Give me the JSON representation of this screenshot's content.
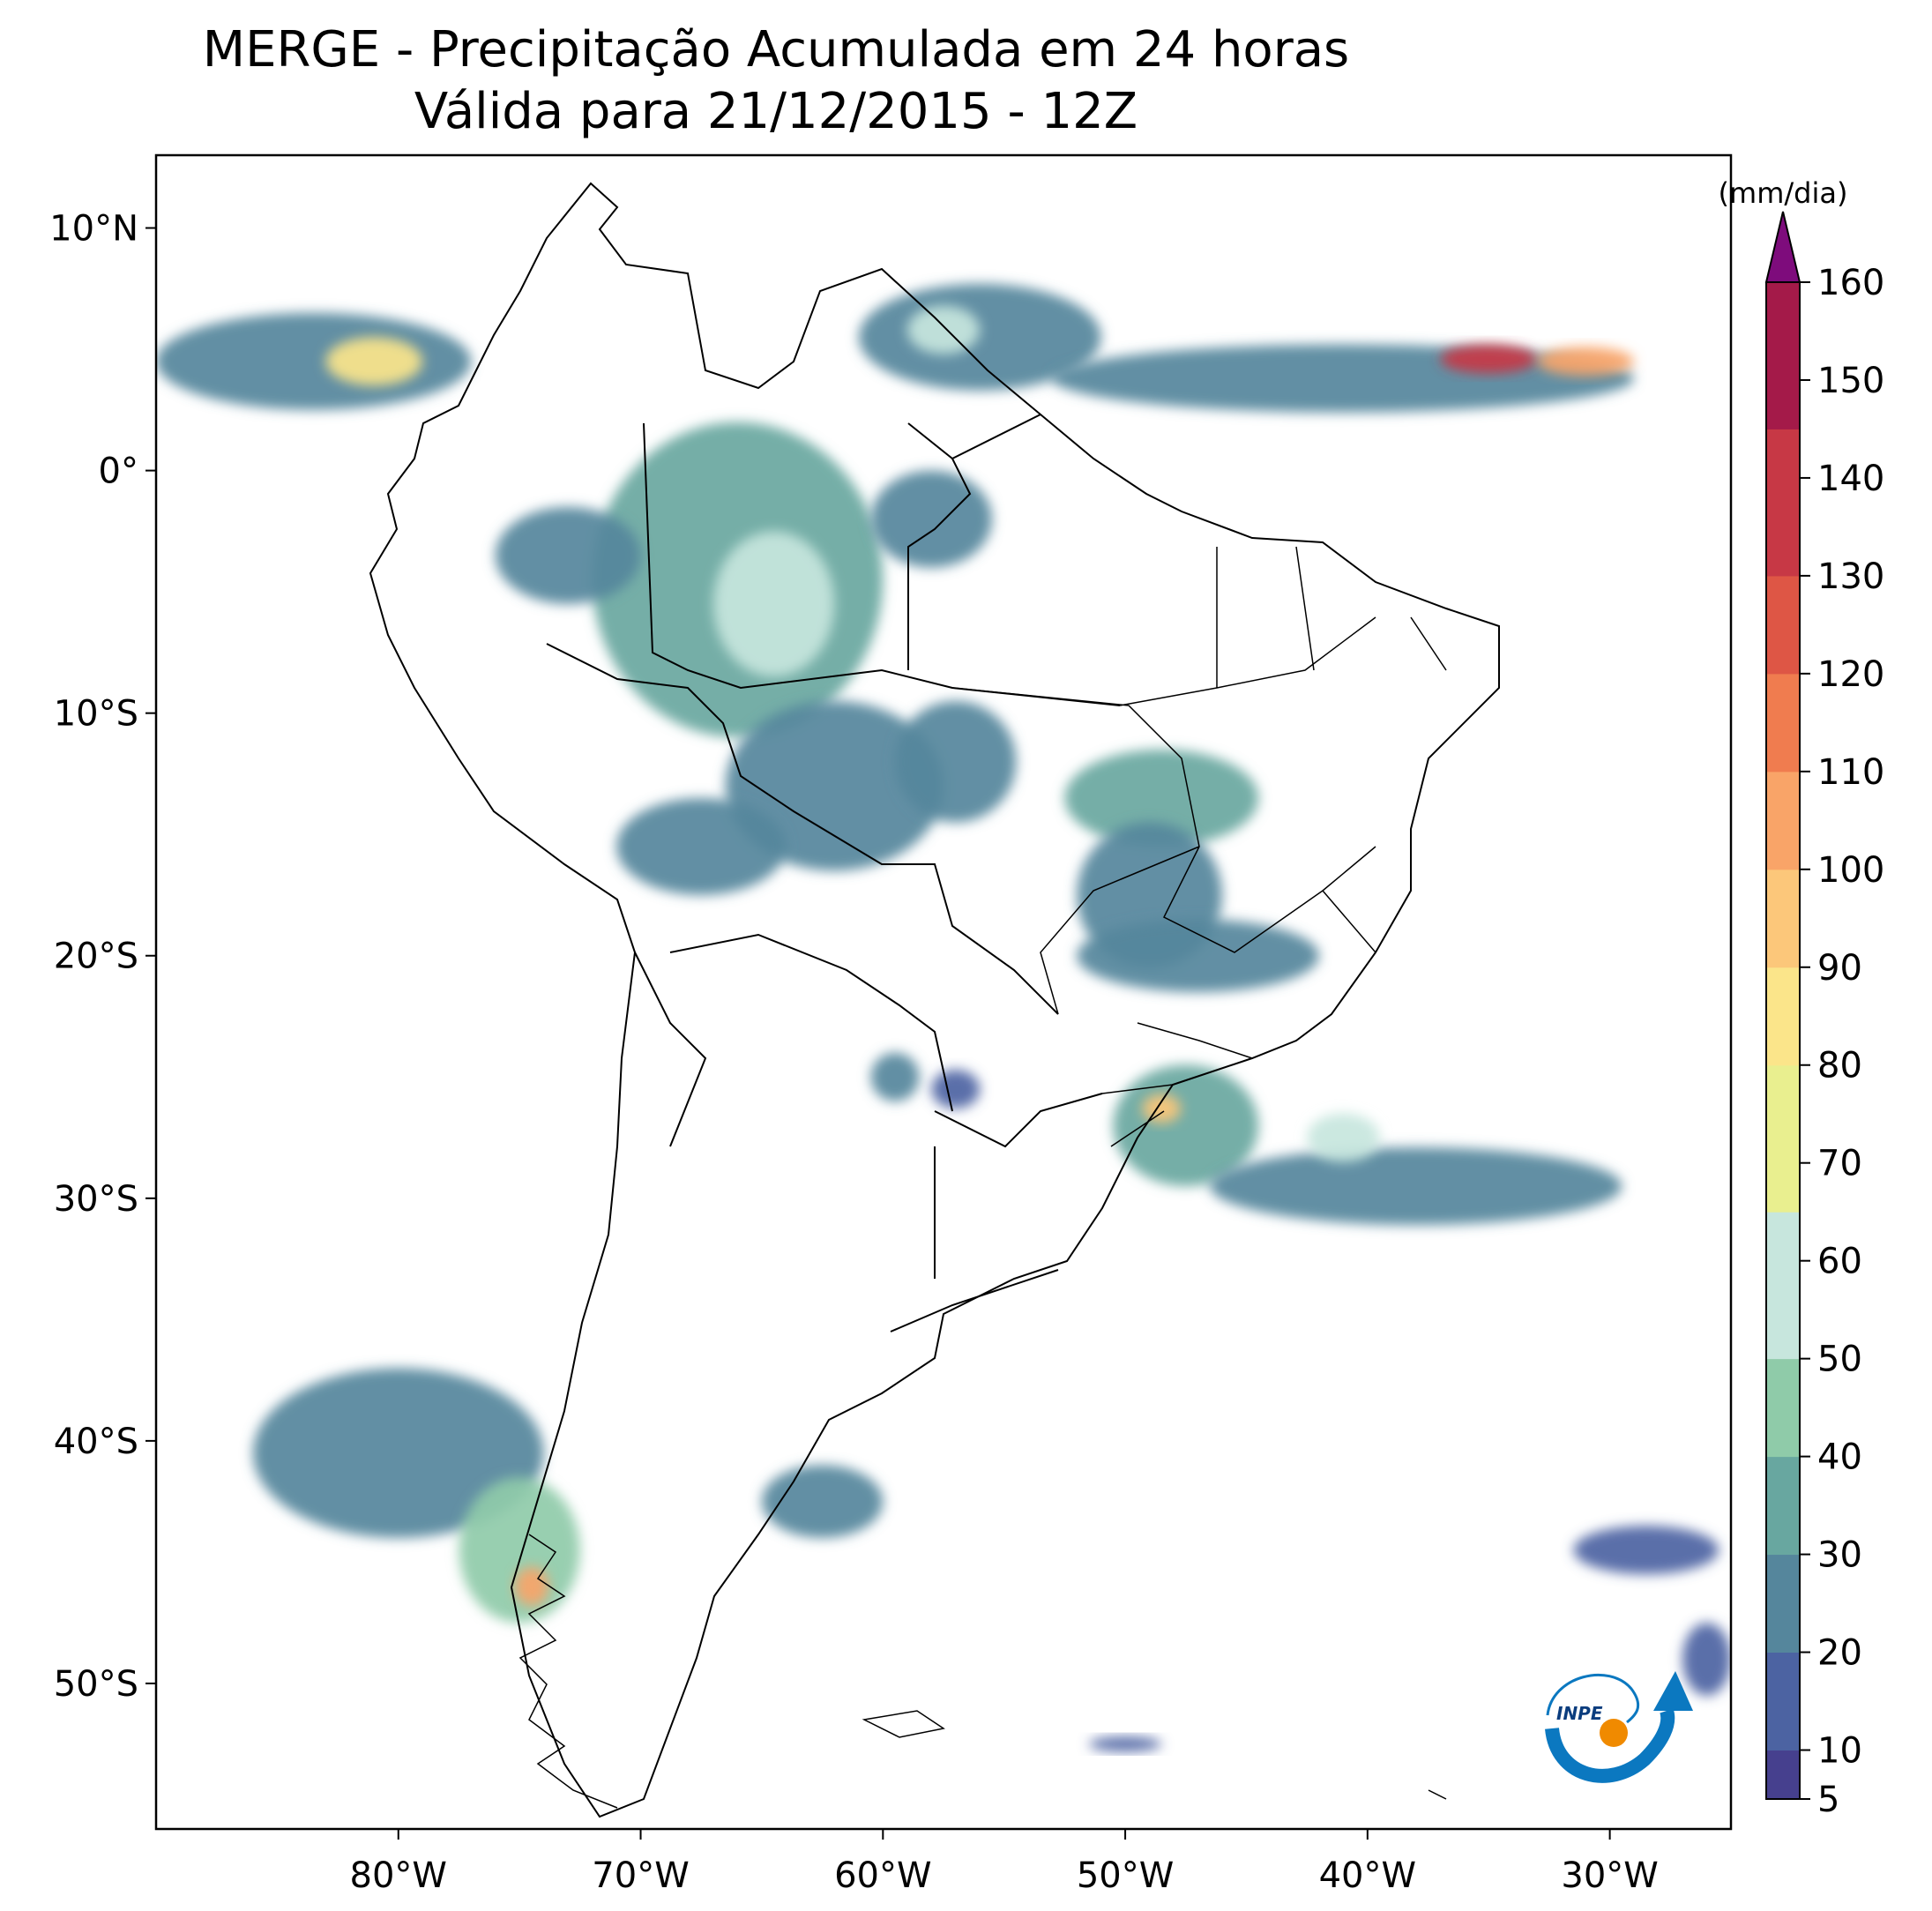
{
  "title": {
    "line1": "MERGE - Precipitação Acumulada em 24 horas",
    "line2": "Válida para 21/12/2015 - 12Z"
  },
  "map": {
    "lon_range": [
      -90,
      -25
    ],
    "lat_range": [
      -56,
      13
    ],
    "lat_ticks": [
      {
        "value": 10,
        "label": "10°N"
      },
      {
        "value": 0,
        "label": "0°"
      },
      {
        "value": -10,
        "label": "10°S"
      },
      {
        "value": -20,
        "label": "20°S"
      },
      {
        "value": -30,
        "label": "30°S"
      },
      {
        "value": -40,
        "label": "40°S"
      },
      {
        "value": -50,
        "label": "50°S"
      }
    ],
    "lon_ticks": [
      {
        "value": -80,
        "label": "80°W"
      },
      {
        "value": -70,
        "label": "70°W"
      },
      {
        "value": -60,
        "label": "60°W"
      },
      {
        "value": -50,
        "label": "50°W"
      },
      {
        "value": -40,
        "label": "40°W"
      },
      {
        "value": -30,
        "label": "30°W"
      }
    ],
    "coastline_color": "#000000",
    "precip_areas": [
      {
        "lon": -83.5,
        "lat": 4.5,
        "rlon": 6.5,
        "rlat": 2.0,
        "level": 2
      },
      {
        "lon": -81.0,
        "lat": 4.5,
        "rlon": 2.0,
        "rlat": 1.0,
        "level": 7
      },
      {
        "lon": -56.0,
        "lat": 5.5,
        "rlon": 5.0,
        "rlat": 2.2,
        "level": 2
      },
      {
        "lon": -57.5,
        "lat": 5.8,
        "rlon": 1.5,
        "rlat": 1.0,
        "level": 5
      },
      {
        "lon": -41.0,
        "lat": 3.8,
        "rlon": 12.0,
        "rlat": 1.4,
        "level": 2
      },
      {
        "lon": -35.0,
        "lat": 4.6,
        "rlon": 2.0,
        "rlat": 0.6,
        "level": 12
      },
      {
        "lon": -31.0,
        "lat": 4.5,
        "rlon": 2.0,
        "rlat": 0.6,
        "level": 9
      },
      {
        "lon": -66.0,
        "lat": -4.5,
        "rlon": 6.0,
        "rlat": 6.5,
        "level": 3
      },
      {
        "lon": -64.5,
        "lat": -5.5,
        "rlon": 2.5,
        "rlat": 3.0,
        "level": 5
      },
      {
        "lon": -73.0,
        "lat": -3.5,
        "rlon": 3.0,
        "rlat": 2.0,
        "level": 2
      },
      {
        "lon": -58.0,
        "lat": -2.0,
        "rlon": 2.5,
        "rlat": 2.0,
        "level": 2
      },
      {
        "lon": -62.0,
        "lat": -13.0,
        "rlon": 4.5,
        "rlat": 3.5,
        "level": 2
      },
      {
        "lon": -57.0,
        "lat": -12.0,
        "rlon": 2.5,
        "rlat": 2.5,
        "level": 2
      },
      {
        "lon": -48.5,
        "lat": -13.5,
        "rlon": 4.0,
        "rlat": 2.0,
        "level": 3
      },
      {
        "lon": -49.0,
        "lat": -17.5,
        "rlon": 3.0,
        "rlat": 3.0,
        "level": 2
      },
      {
        "lon": -47.0,
        "lat": -20.0,
        "rlon": 5.0,
        "rlat": 1.5,
        "level": 2
      },
      {
        "lon": -67.5,
        "lat": -15.5,
        "rlon": 3.5,
        "rlat": 2.0,
        "level": 2
      },
      {
        "lon": -47.5,
        "lat": -27.0,
        "rlon": 3.0,
        "rlat": 2.5,
        "level": 3
      },
      {
        "lon": -48.5,
        "lat": -26.3,
        "rlon": 0.8,
        "rlat": 0.6,
        "level": 8
      },
      {
        "lon": -38.0,
        "lat": -29.5,
        "rlon": 8.5,
        "rlat": 1.6,
        "level": 2
      },
      {
        "lon": -41.0,
        "lat": -27.5,
        "rlon": 1.5,
        "rlat": 1.0,
        "level": 5
      },
      {
        "lon": -80.0,
        "lat": -40.5,
        "rlon": 6.0,
        "rlat": 3.5,
        "level": 2
      },
      {
        "lon": -75.0,
        "lat": -44.5,
        "rlon": 2.5,
        "rlat": 3.0,
        "level": 4
      },
      {
        "lon": -74.5,
        "lat": -46.0,
        "rlon": 0.7,
        "rlat": 0.8,
        "level": 9
      },
      {
        "lon": -62.5,
        "lat": -42.5,
        "rlon": 2.5,
        "rlat": 1.5,
        "level": 2
      },
      {
        "lon": -59.5,
        "lat": -25.0,
        "rlon": 1.0,
        "rlat": 1.0,
        "level": 2
      },
      {
        "lon": -28.5,
        "lat": -44.5,
        "rlon": 3.0,
        "rlat": 1.0,
        "level": 1
      },
      {
        "lon": -26.0,
        "lat": -49.0,
        "rlon": 1.0,
        "rlat": 1.5,
        "level": 1
      },
      {
        "lon": -50.0,
        "lat": -52.5,
        "rlon": 1.5,
        "rlat": 0.3,
        "level": 1
      },
      {
        "lon": -57.0,
        "lat": -25.5,
        "rlon": 1.0,
        "rlat": 0.8,
        "level": 1
      }
    ]
  },
  "colorbar": {
    "unit_label": "(mm/dia)",
    "min": 5,
    "max": 160,
    "ticks": [
      5,
      10,
      20,
      30,
      40,
      50,
      60,
      70,
      80,
      90,
      100,
      110,
      120,
      130,
      140,
      150,
      160
    ],
    "colors": [
      "#46408e",
      "#4c63a2",
      "#55869c",
      "#68a7a0",
      "#8fcba9",
      "#c7e6dd",
      "#e9ef8f",
      "#fbe58a",
      "#fcc77a",
      "#f9a468",
      "#f07c4f",
      "#de5645",
      "#c73845",
      "#a41a49"
    ],
    "extend_color": "#7e0c7c"
  },
  "logo": {
    "text": "INPE"
  }
}
